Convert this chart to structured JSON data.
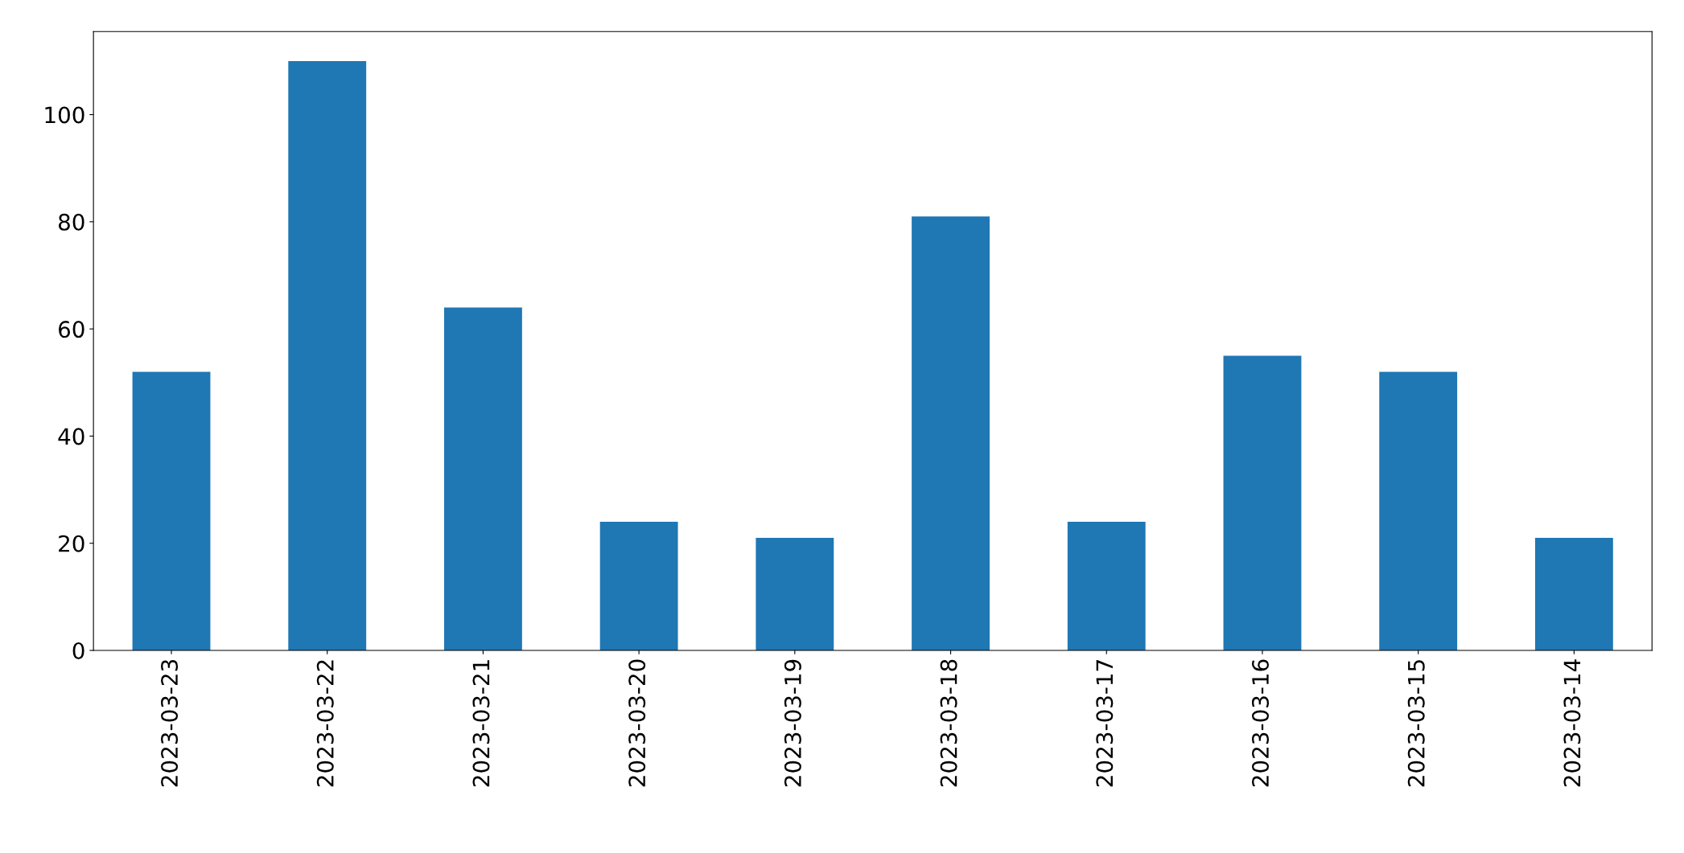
{
  "chart_data": {
    "type": "bar",
    "categories": [
      "2023-03-23",
      "2023-03-22",
      "2023-03-21",
      "2023-03-20",
      "2023-03-19",
      "2023-03-18",
      "2023-03-17",
      "2023-03-16",
      "2023-03-15",
      "2023-03-14"
    ],
    "values": [
      52,
      110,
      64,
      24,
      21,
      81,
      24,
      55,
      52,
      21
    ],
    "color": "#1f77b4",
    "ylim": [
      0,
      115.5
    ],
    "yticks": [
      0,
      20,
      40,
      60,
      80,
      100
    ],
    "grid": false,
    "legend": false
  }
}
